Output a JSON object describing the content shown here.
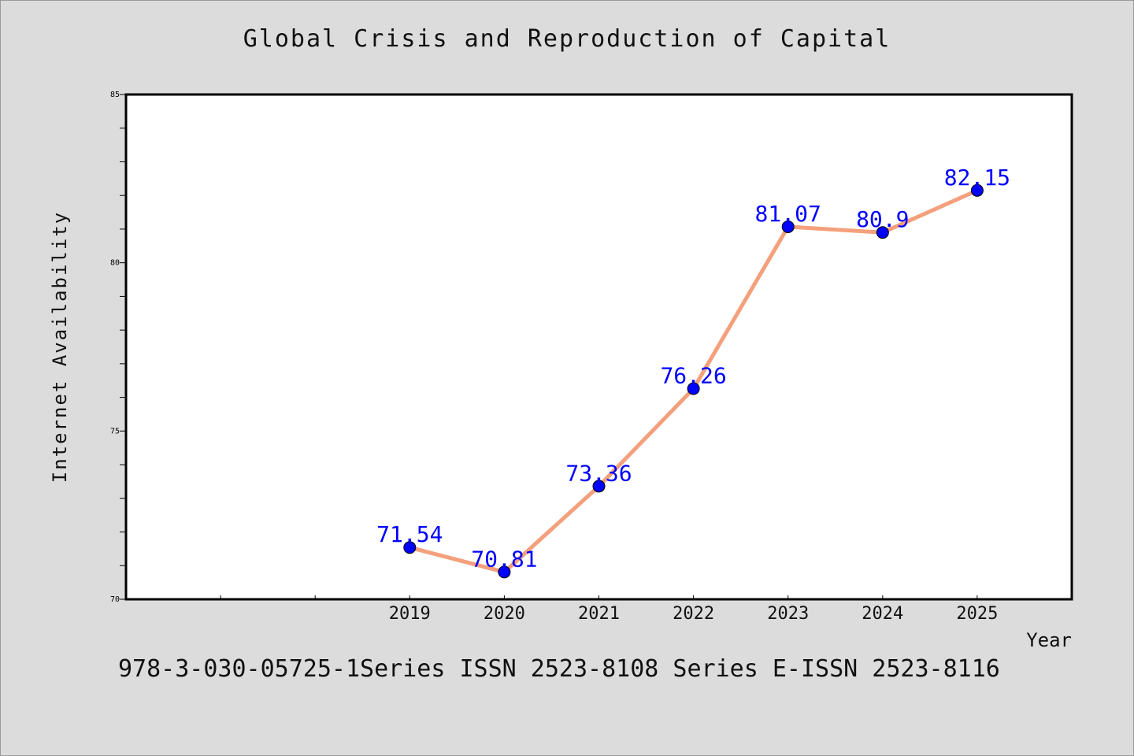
{
  "chart_data": {
    "type": "line",
    "title": "Global Crisis and Reproduction of Capital",
    "xlabel": "Year",
    "ylabel": "Internet Availability",
    "x": [
      "2019",
      "2020",
      "2021",
      "2022",
      "2023",
      "2024",
      "2025"
    ],
    "series": [
      {
        "values": [
          71.54,
          70.81,
          73.36,
          76.26,
          81.07,
          80.9,
          82.15
        ],
        "labels": [
          "71.54",
          "70.81",
          "73.36",
          "76.26",
          "81.07",
          "80.9",
          "82.15"
        ]
      }
    ],
    "ylim": [
      70,
      85
    ],
    "xlim": [
      2016,
      2026
    ],
    "y_ticks": [
      "70",
      "75",
      "80",
      "85"
    ],
    "grid": false,
    "legend": "none",
    "colors": {
      "line": "#f4a07c",
      "marker": "#0000ff",
      "label": "#0000ff",
      "plot_bg": "#ffffff",
      "page_bg": "#dcdcdc"
    }
  },
  "footer": "978-3-030-05725-1Series ISSN 2523-8108 Series E-ISSN 2523-8116"
}
